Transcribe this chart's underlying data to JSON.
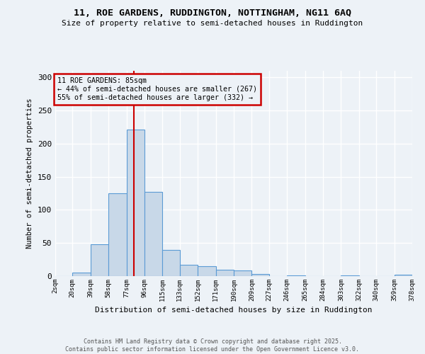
{
  "title_line1": "11, ROE GARDENS, RUDDINGTON, NOTTINGHAM, NG11 6AQ",
  "title_line2": "Size of property relative to semi-detached houses in Ruddington",
  "xlabel": "Distribution of semi-detached houses by size in Ruddington",
  "ylabel": "Number of semi-detached properties",
  "bin_edges": [
    2,
    20,
    39,
    58,
    77,
    96,
    115,
    133,
    152,
    171,
    190,
    209,
    227,
    246,
    265,
    284,
    303,
    322,
    340,
    359,
    378
  ],
  "bar_heights": [
    0,
    5,
    48,
    125,
    221,
    127,
    40,
    17,
    15,
    10,
    9,
    3,
    0,
    1,
    0,
    0,
    1,
    0,
    0,
    2
  ],
  "bar_color": "#c8d8e8",
  "bar_edge_color": "#5b9bd5",
  "property_line_x": 85,
  "property_line_color": "#cc0000",
  "annotation_title": "11 ROE GARDENS: 85sqm",
  "annotation_line2": "← 44% of semi-detached houses are smaller (267)",
  "annotation_line3": "55% of semi-detached houses are larger (332) →",
  "annotation_box_color": "#cc0000",
  "ylim": [
    0,
    310
  ],
  "yticks": [
    0,
    50,
    100,
    150,
    200,
    250,
    300
  ],
  "xtick_labels": [
    "2sqm",
    "20sqm",
    "39sqm",
    "58sqm",
    "77sqm",
    "96sqm",
    "115sqm",
    "133sqm",
    "152sqm",
    "171sqm",
    "190sqm",
    "209sqm",
    "227sqm",
    "246sqm",
    "265sqm",
    "284sqm",
    "303sqm",
    "322sqm",
    "340sqm",
    "359sqm",
    "378sqm"
  ],
  "footnote_line1": "Contains HM Land Registry data © Crown copyright and database right 2025.",
  "footnote_line2": "Contains public sector information licensed under the Open Government Licence v3.0.",
  "background_color": "#edf2f7",
  "grid_color": "#ffffff"
}
